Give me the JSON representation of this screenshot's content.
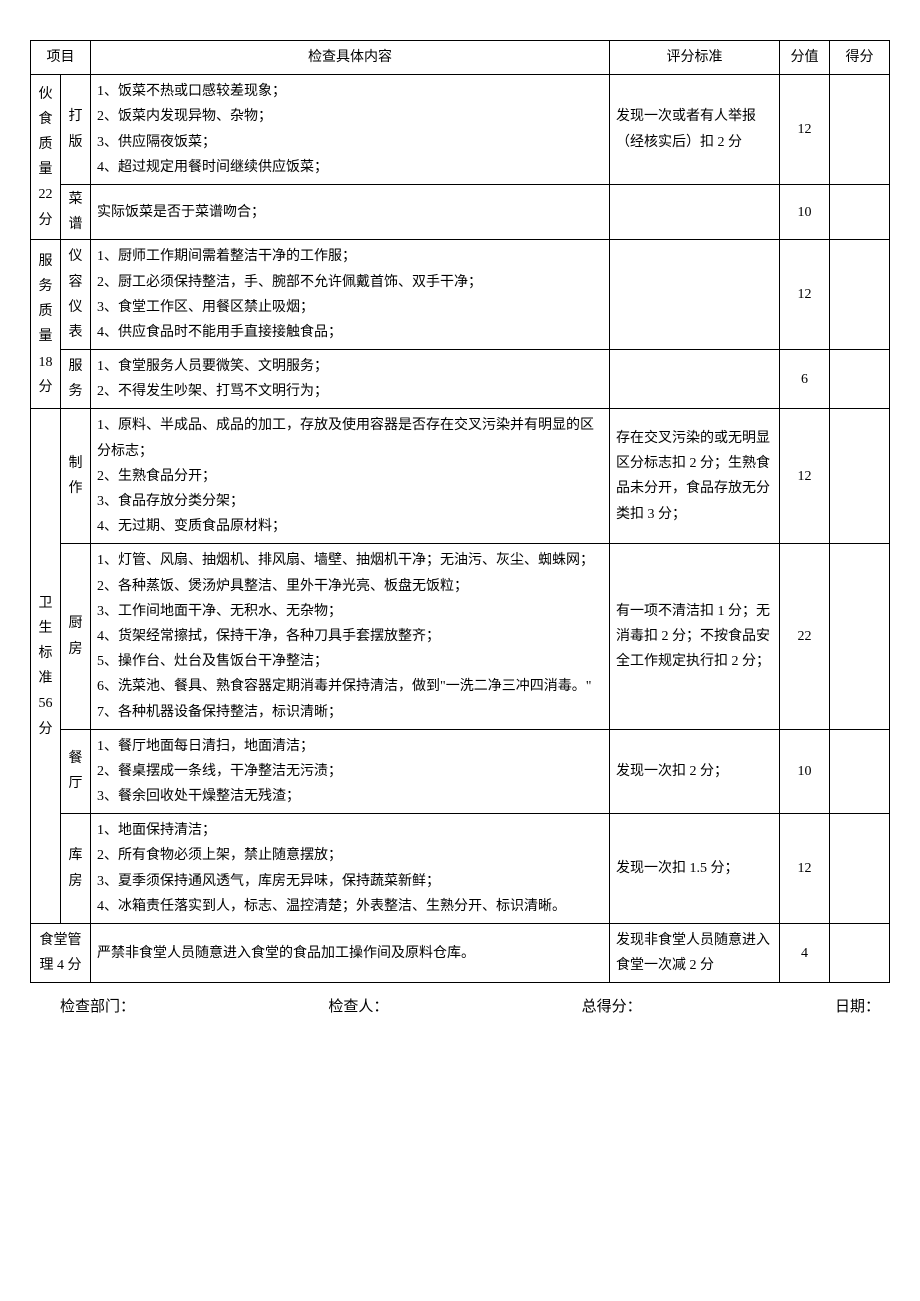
{
  "headers": {
    "category": "项目",
    "content": "检查具体内容",
    "standard": "评分标准",
    "score": "分值",
    "got": "得分"
  },
  "rows": [
    {
      "category": "伙食质量 22 分",
      "category_rowspan": 2,
      "subcat": "打版",
      "content": "1、饭菜不热或口感较差现象；\n2、饭菜内发现异物、杂物；\n3、供应隔夜饭菜；\n4、超过规定用餐时间继续供应饭菜；",
      "standard": "发现一次或者有人举报（经核实后）扣 2 分",
      "score": "12"
    },
    {
      "subcat": "菜谱",
      "content": "实际饭菜是否于菜谱吻合；",
      "standard": "",
      "score": "10"
    },
    {
      "category": "服务质量 18 分",
      "category_rowspan": 2,
      "subcat": "仪容仪表",
      "content": "1、厨师工作期间需着整洁干净的工作服；\n2、厨工必须保持整洁，手、腕部不允许佩戴首饰、双手干净；\n3、食堂工作区、用餐区禁止吸烟；\n4、供应食品时不能用手直接接触食品；",
      "standard": "",
      "score": "12"
    },
    {
      "subcat": "服务",
      "content": "1、食堂服务人员要微笑、文明服务；\n2、不得发生吵架、打骂不文明行为；",
      "standard": "",
      "score": "6"
    },
    {
      "category": "卫生标准 56 分",
      "category_rowspan": 4,
      "subcat": "制作",
      "content": "1、原料、半成品、成品的加工，存放及使用容器是否存在交叉污染并有明显的区分标志；\n2、生熟食品分开；\n3、食品存放分类分架；\n4、无过期、变质食品原材料；",
      "standard": "存在交叉污染的或无明显区分标志扣 2 分；生熟食品未分开，食品存放无分类扣 3 分；",
      "score": "12"
    },
    {
      "subcat": "厨房",
      "content": "1、灯管、风扇、抽烟机、排风扇、墙壁、抽烟机干净；无油污、灰尘、蜘蛛网；\n2、各种蒸饭、煲汤炉具整洁、里外干净光亮、板盘无饭粒；\n3、工作间地面干净、无积水、无杂物；\n4、货架经常擦拭，保持干净，各种刀具手套摆放整齐；\n5、操作台、灶台及售饭台干净整洁；\n6、洗菜池、餐具、熟食容器定期消毒并保持清洁，做到\"一洗二净三冲四消毒。\"\n7、各种机器设备保持整洁，标识清晰；",
      "standard": "有一项不清洁扣 1 分；无消毒扣 2 分；不按食品安全工作规定执行扣 2 分；",
      "score": "22"
    },
    {
      "subcat": "餐厅",
      "content": "1、餐厅地面每日清扫，地面清洁；\n2、餐桌摆成一条线，干净整洁无污渍；\n3、餐余回收处干燥整洁无残渣；",
      "standard": "发现一次扣 2 分；",
      "score": "10"
    },
    {
      "subcat": "库房",
      "content": "1、地面保持清洁；\n2、所有食物必须上架，禁止随意摆放；\n3、夏季须保持通风透气，库房无异味，保持蔬菜新鲜；\n4、冰箱责任落实到人，标志、温控清楚；外表整洁、生熟分开、标识清晰。",
      "standard": "发现一次扣 1.5 分；",
      "score": "12"
    },
    {
      "category": "食堂管理 4 分",
      "category_rowspan": 1,
      "subcat": "",
      "content": "严禁非食堂人员随意进入食堂的食品加工操作间及原料仓库。",
      "standard": "发现非食堂人员随意进入食堂一次减 2 分",
      "score": "4",
      "merge_subcat": true
    }
  ],
  "footer": {
    "dept": "检查部门：",
    "person": "检查人：",
    "total": "总得分：",
    "date": "日期："
  }
}
